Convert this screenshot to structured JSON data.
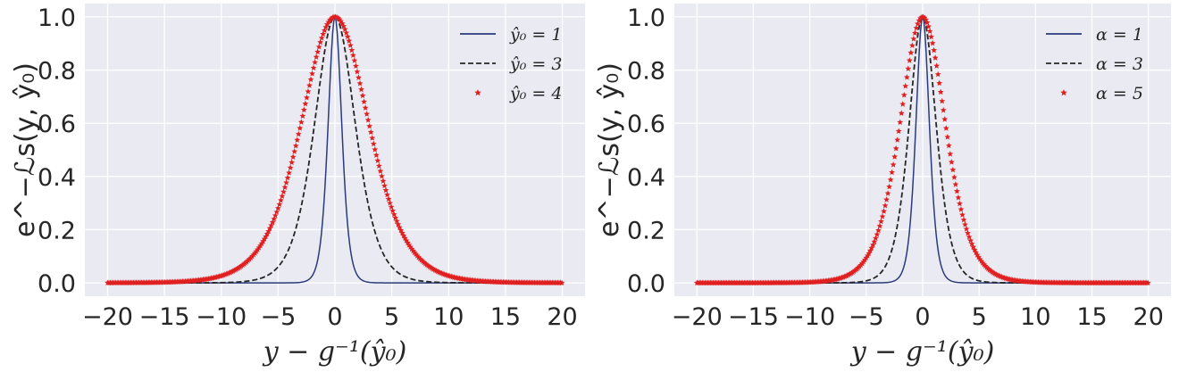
{
  "chart_data": [
    {
      "type": "line",
      "xlabel": "y − g⁻¹(ŷ₀)",
      "ylabel": "e^−ℒs(y, ŷ₀)",
      "xlim": [
        -22,
        22
      ],
      "ylim": [
        -0.05,
        1.05
      ],
      "xticks": [
        "−20",
        "−15",
        "−10",
        "−5",
        "0",
        "5",
        "10",
        "15",
        "20"
      ],
      "xtick_values": [
        -20,
        -15,
        -10,
        -5,
        0,
        5,
        10,
        15,
        20
      ],
      "yticks": [
        "0.0",
        "0.2",
        "0.4",
        "0.6",
        "0.8",
        "1.0"
      ],
      "ytick_values": [
        0,
        0.2,
        0.4,
        0.6,
        0.8,
        1.0
      ],
      "grid": true,
      "legend_position": "top-right",
      "series": [
        {
          "name": "ŷ₀ = 1",
          "style": "solid",
          "color": "#2b3a7a",
          "scale": 0.8
        },
        {
          "name": "ŷ₀ = 3",
          "style": "dashed",
          "color": "#262626",
          "scale": 2.4
        },
        {
          "name": "ŷ₀ = 4",
          "style": "star",
          "color": "#e02020",
          "scale": 4.0
        }
      ]
    },
    {
      "type": "line",
      "xlabel": "y − g⁻¹(ŷ₀)",
      "ylabel": "e^−ℒs(y, ŷ₀)",
      "xlim": [
        -22,
        22
      ],
      "ylim": [
        -0.05,
        1.05
      ],
      "xticks": [
        "−20",
        "−15",
        "−10",
        "−5",
        "0",
        "5",
        "10",
        "15",
        "20"
      ],
      "xtick_values": [
        -20,
        -15,
        -10,
        -5,
        0,
        5,
        10,
        15,
        20
      ],
      "yticks": [
        "0.0",
        "0.2",
        "0.4",
        "0.6",
        "0.8",
        "1.0"
      ],
      "ytick_values": [
        0,
        0.2,
        0.4,
        0.6,
        0.8,
        1.0
      ],
      "grid": true,
      "legend_position": "top-right",
      "series": [
        {
          "name": "α = 1",
          "style": "solid",
          "color": "#2b3a7a",
          "scale": 0.8
        },
        {
          "name": "α = 3",
          "style": "dashed",
          "color": "#262626",
          "scale": 1.6
        },
        {
          "name": "α = 5",
          "style": "star",
          "color": "#e02020",
          "scale": 2.7
        }
      ]
    }
  ]
}
